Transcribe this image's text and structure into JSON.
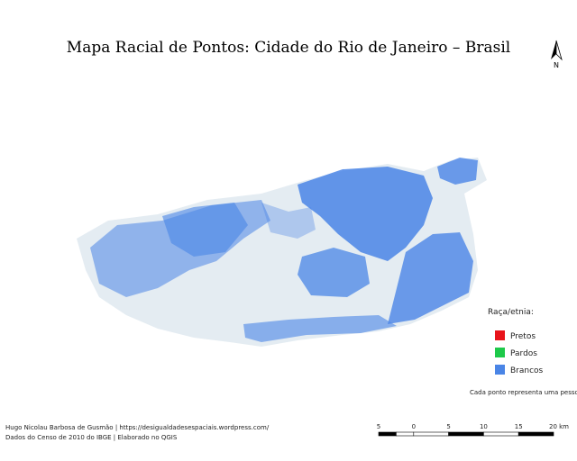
{
  "title": "Mapa Racial de Pontos: Cidade do Rio de Janeiro – Brasil",
  "north_arrow": "N",
  "legend": {
    "title": "Raça/etnia:",
    "items": [
      {
        "label": "Pretos",
        "color": "#e8141b"
      },
      {
        "label": "Pardos",
        "color": "#1ec94a"
      },
      {
        "label": "Brancos",
        "color": "#4a85e6"
      }
    ],
    "note": "Cada ponto representa uma pessoa."
  },
  "credits": [
    "Hugo Nicolau Barbosa de Gusmão | https://desigualdadesespaciais.wordpress.com/",
    "Dados do Censo de 2010 do IBGE | Elaborado no QGIS"
  ],
  "scale_bar": {
    "ticks": [
      "5",
      "0",
      "5",
      "10",
      "15",
      "20 km"
    ]
  }
}
